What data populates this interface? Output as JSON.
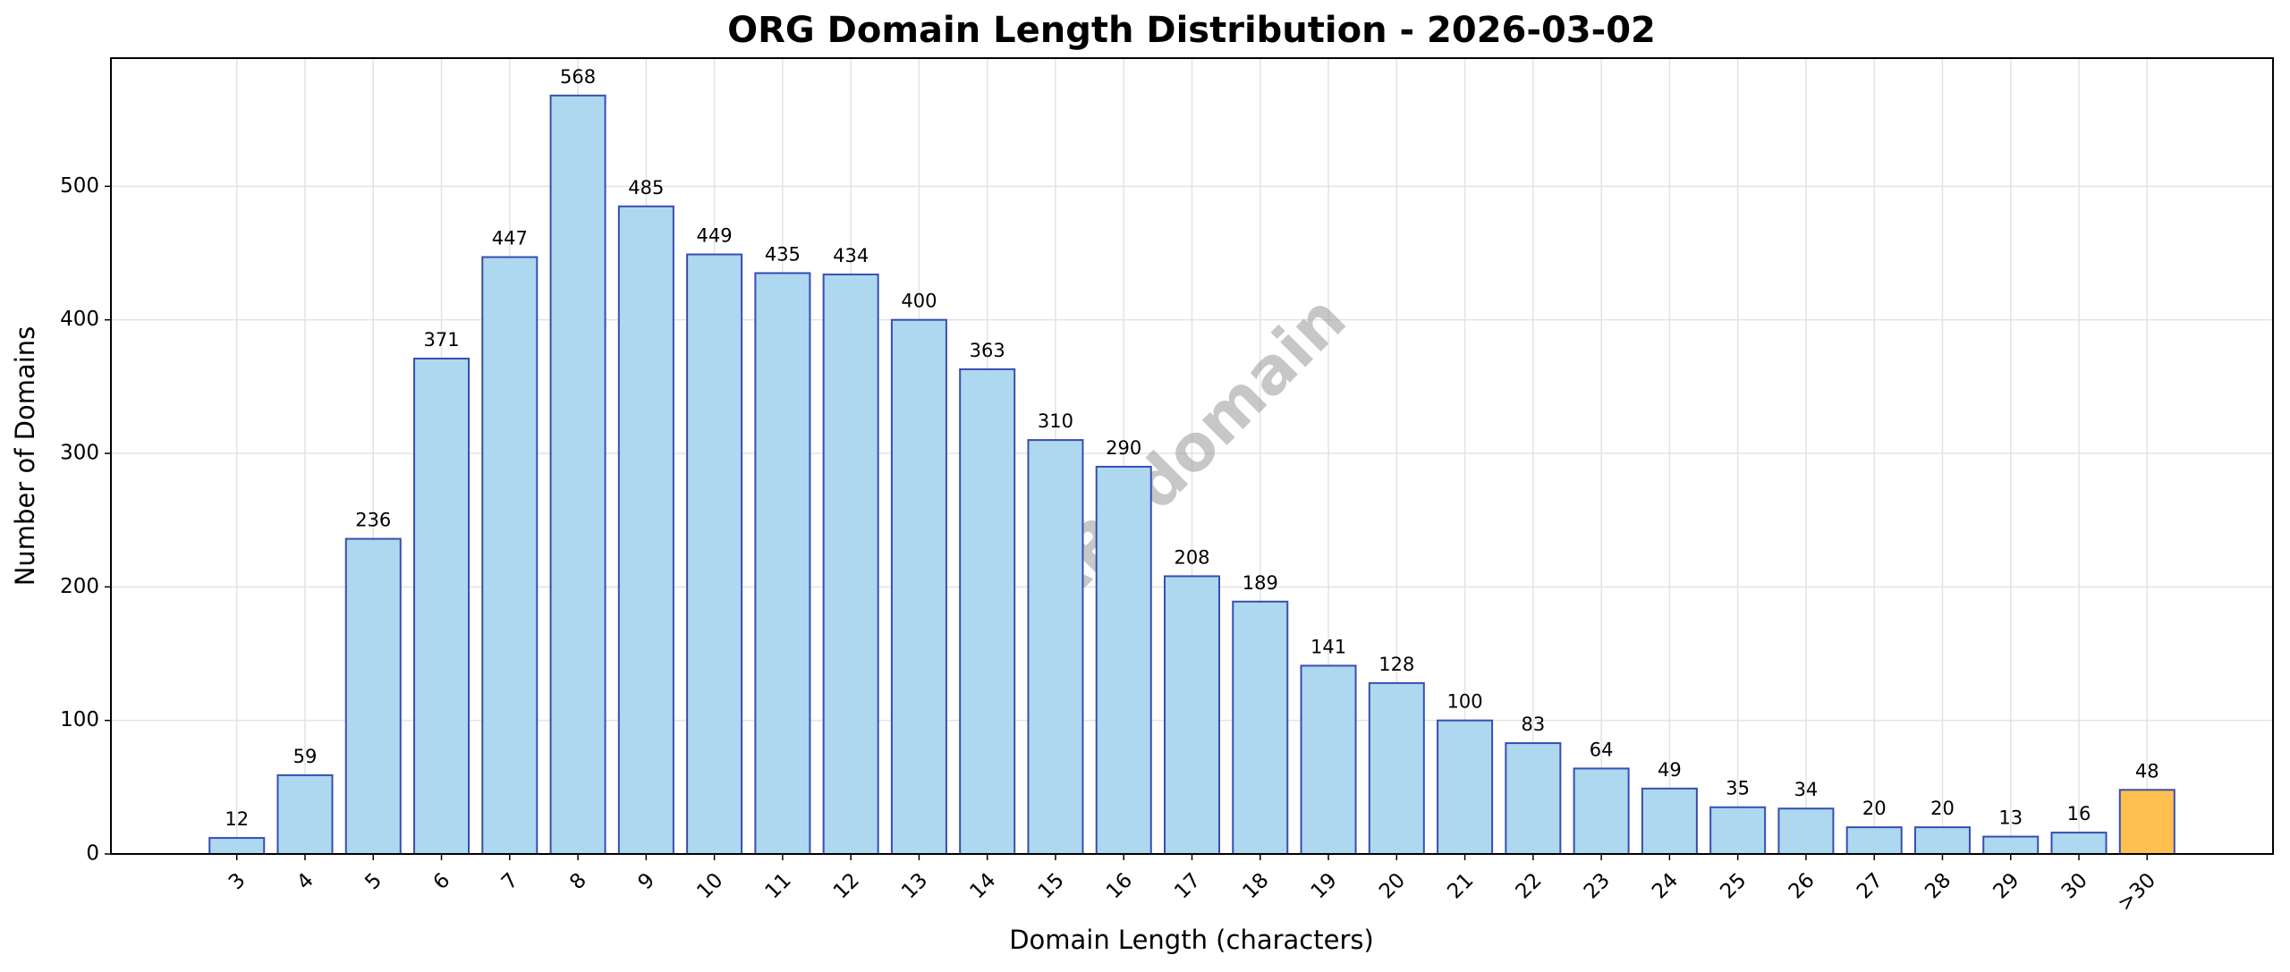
{
  "chart_data": {
    "type": "bar",
    "title": "ORG Domain Length Distribution - 2026-03-02",
    "xlabel": "Domain Length (characters)",
    "ylabel": "Number of Domains",
    "watermark": "ABTdomain",
    "categories": [
      "3",
      "4",
      "5",
      "6",
      "7",
      "8",
      "9",
      "10",
      "11",
      "12",
      "13",
      "14",
      "15",
      "16",
      "17",
      "18",
      "19",
      "20",
      "21",
      "22",
      "23",
      "24",
      "25",
      "26",
      "27",
      "28",
      "29",
      "30",
      ">30"
    ],
    "values": [
      12,
      59,
      236,
      371,
      447,
      568,
      485,
      449,
      435,
      434,
      400,
      363,
      310,
      290,
      208,
      189,
      141,
      128,
      100,
      83,
      64,
      49,
      35,
      34,
      20,
      20,
      13,
      16,
      48
    ],
    "colors": [
      "#add8ef",
      "#add8ef",
      "#add8ef",
      "#add8ef",
      "#add8ef",
      "#add8ef",
      "#add8ef",
      "#add8ef",
      "#add8ef",
      "#add8ef",
      "#add8ef",
      "#add8ef",
      "#add8ef",
      "#add8ef",
      "#add8ef",
      "#add8ef",
      "#add8ef",
      "#add8ef",
      "#add8ef",
      "#add8ef",
      "#add8ef",
      "#add8ef",
      "#add8ef",
      "#add8ef",
      "#add8ef",
      "#add8ef",
      "#add8ef",
      "#add8ef",
      "#ffc04f"
    ],
    "edgecolor": "#3a4db0",
    "ylim": [
      0,
      596
    ],
    "yticks": [
      0,
      100,
      200,
      300,
      400,
      500
    ],
    "grid": true
  }
}
